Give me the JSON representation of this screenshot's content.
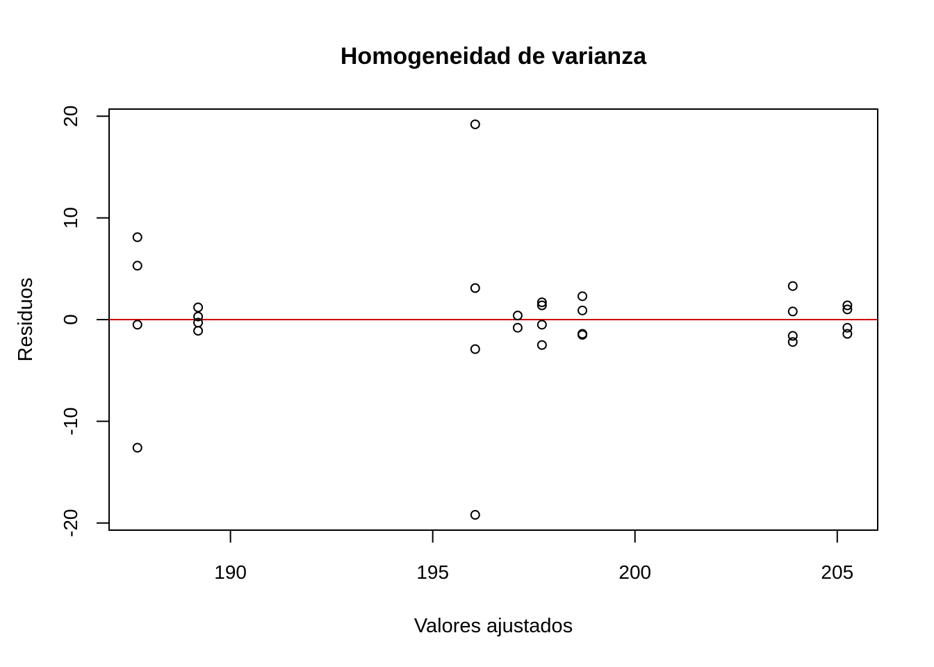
{
  "chart_data": {
    "type": "scatter",
    "title": "Homogeneidad de varianza",
    "xlabel": "Valores ajustados",
    "ylabel": "Residuos",
    "xlim": [
      187,
      206
    ],
    "ylim": [
      -20.7,
      20.7
    ],
    "xticks": [
      190,
      195,
      200,
      205
    ],
    "yticks": [
      -20,
      -10,
      0,
      10,
      20
    ],
    "reference_line": {
      "y": 0,
      "color": "#cc0000"
    },
    "grid": false,
    "legend": "none",
    "point_style": "open-circle",
    "points": [
      {
        "x": 187.7,
        "y": 8.1
      },
      {
        "x": 187.7,
        "y": 5.3
      },
      {
        "x": 187.7,
        "y": -0.5
      },
      {
        "x": 187.7,
        "y": -12.6
      },
      {
        "x": 189.2,
        "y": 1.2
      },
      {
        "x": 189.2,
        "y": 0.3
      },
      {
        "x": 189.2,
        "y": -0.3
      },
      {
        "x": 189.2,
        "y": -1.1
      },
      {
        "x": 196.05,
        "y": 19.2
      },
      {
        "x": 196.05,
        "y": 3.1
      },
      {
        "x": 196.05,
        "y": -2.9
      },
      {
        "x": 196.05,
        "y": -19.2
      },
      {
        "x": 197.1,
        "y": 0.4
      },
      {
        "x": 197.1,
        "y": -0.8
      },
      {
        "x": 197.7,
        "y": 1.7
      },
      {
        "x": 197.7,
        "y": 1.4
      },
      {
        "x": 197.7,
        "y": -0.5
      },
      {
        "x": 197.7,
        "y": -2.5
      },
      {
        "x": 198.7,
        "y": 2.3
      },
      {
        "x": 198.7,
        "y": 0.9
      },
      {
        "x": 198.7,
        "y": -1.4
      },
      {
        "x": 198.7,
        "y": -1.5
      },
      {
        "x": 203.9,
        "y": 3.3
      },
      {
        "x": 203.9,
        "y": 0.8
      },
      {
        "x": 203.9,
        "y": -1.6
      },
      {
        "x": 203.9,
        "y": -2.2
      },
      {
        "x": 205.25,
        "y": 1.4
      },
      {
        "x": 205.25,
        "y": 1.0
      },
      {
        "x": 205.25,
        "y": -0.8
      },
      {
        "x": 205.25,
        "y": -1.4
      }
    ]
  }
}
